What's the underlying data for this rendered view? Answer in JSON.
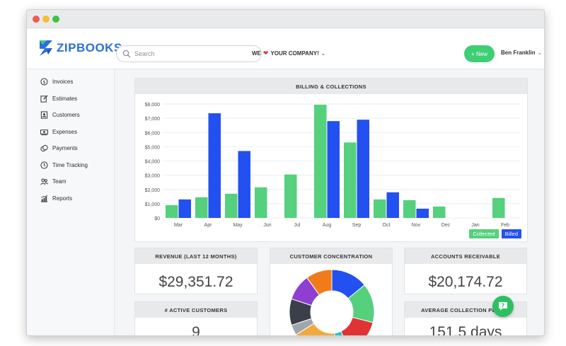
{
  "brand": {
    "name": "ZIPBOOKS"
  },
  "search": {
    "placeholder": "Search"
  },
  "company": {
    "prefix": "WE",
    "heart": "❤",
    "suffix": "YOUR COMPANY!",
    "chevron": "⌄"
  },
  "header": {
    "new_label": "+ New",
    "user_name": "Ben Franklin",
    "chevron": "⌄"
  },
  "sidebar": {
    "items": [
      {
        "label": "Invoices",
        "icon": "dollar-circle-icon"
      },
      {
        "label": "Estimates",
        "icon": "edit-icon"
      },
      {
        "label": "Customers",
        "icon": "contact-card-icon"
      },
      {
        "label": "Expenses",
        "icon": "cash-icon"
      },
      {
        "label": "Payments",
        "icon": "coins-icon"
      },
      {
        "label": "Time Tracking",
        "icon": "clock-icon"
      },
      {
        "label": "Team",
        "icon": "team-icon"
      },
      {
        "label": "Reports",
        "icon": "chart-icon"
      }
    ]
  },
  "billing": {
    "title": "BILLING & COLLECTIONS"
  },
  "chart_data": {
    "type": "bar",
    "title": "BILLING & COLLECTIONS",
    "categories": [
      "Mar",
      "Apr",
      "May",
      "Jun",
      "Jul",
      "Aug",
      "Sep",
      "Oct",
      "Nov",
      "Dec",
      "Jan",
      "Feb"
    ],
    "series": [
      {
        "name": "Collected",
        "color": "#55d07c",
        "values": [
          900,
          1450,
          1700,
          2150,
          3050,
          7950,
          5300,
          1300,
          1250,
          800,
          0,
          1400
        ]
      },
      {
        "name": "Billed",
        "color": "#2350f0",
        "values": [
          1300,
          7350,
          4700,
          0,
          0,
          6800,
          6900,
          1800,
          650,
          0,
          0,
          0
        ]
      }
    ],
    "ylim": [
      0,
      8000
    ],
    "yticks": [
      "$0",
      "$1,000",
      "$2,000",
      "$3,000",
      "$4,000",
      "$5,000",
      "$6,000",
      "$7,000",
      "$8,000"
    ],
    "grid": true,
    "legend": "bottom-right"
  },
  "revenue": {
    "title": "REVENUE (LAST 12 MONTHS)",
    "value": "$29,351.72"
  },
  "concentration": {
    "title": "CUSTOMER CONCENTRATION",
    "segments": [
      {
        "color": "#2350f0",
        "value": 14
      },
      {
        "color": "#55d07c",
        "value": 15
      },
      {
        "color": "#e03434",
        "value": 14
      },
      {
        "color": "#2bc4c4",
        "value": 5
      },
      {
        "color": "#f2a93b",
        "value": 18
      },
      {
        "color": "#a0a6ad",
        "value": 4
      },
      {
        "color": "#3a3f4a",
        "value": 10
      },
      {
        "color": "#8e3fd1",
        "value": 10
      },
      {
        "color": "#f07b1a",
        "value": 10
      }
    ]
  },
  "receivable": {
    "title": "ACCOUNTS RECEIVABLE",
    "value": "$20,174.72"
  },
  "active_customers": {
    "title": "# ACTIVE CUSTOMERS",
    "value": "9"
  },
  "collection_period": {
    "title": "AVERAGE COLLECTION PERIOD",
    "value": "151.5 days"
  }
}
